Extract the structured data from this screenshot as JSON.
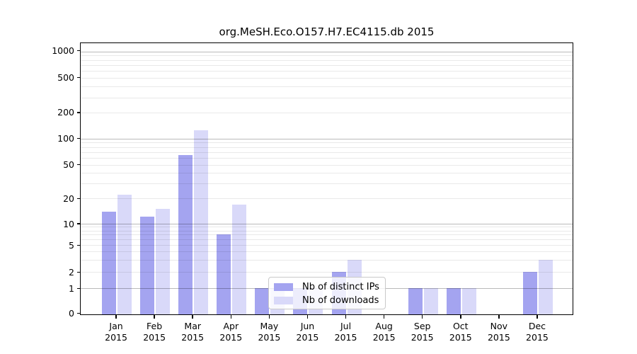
{
  "title": "org.MeSH.Eco.O157.H7.EC4115.db 2015",
  "chart_data": {
    "type": "bar",
    "title": "org.MeSH.Eco.O157.H7.EC4115.db 2015",
    "year_label": "2015",
    "months": [
      "Jan",
      "Feb",
      "Mar",
      "Apr",
      "May",
      "Jun",
      "Jul",
      "Aug",
      "Sep",
      "Oct",
      "Nov",
      "Dec"
    ],
    "series": [
      {
        "name": "Nb of distinct IPs",
        "color": "#a4a4f0",
        "values": [
          14,
          12,
          65,
          7,
          1,
          1,
          2,
          0,
          1,
          1,
          0,
          2
        ]
      },
      {
        "name": "Nb of downloads",
        "color": "#d9d9f9",
        "values": [
          22,
          15,
          125,
          17,
          1,
          1,
          3,
          0,
          1,
          1,
          0,
          3
        ]
      }
    ],
    "yscale": "log-like (symlog with 0 baseline)",
    "ytick_labels": [
      "0",
      "1",
      "2",
      "5",
      "10",
      "20",
      "50",
      "100",
      "200",
      "500",
      "1000"
    ],
    "yticks": [
      0,
      1,
      2,
      5,
      10,
      20,
      50,
      100,
      200,
      500,
      1000
    ],
    "ylim": [
      0,
      1400
    ],
    "grid": true,
    "legend_position": "inside lower center"
  },
  "colors": {
    "bar_distinct_ips": "#a4a4f0",
    "bar_downloads": "#d9d9f9",
    "major_gridline": "#b9b9b9",
    "minor_gridline": "#e8e8e8",
    "spine": "#000000",
    "background": "#ffffff"
  }
}
